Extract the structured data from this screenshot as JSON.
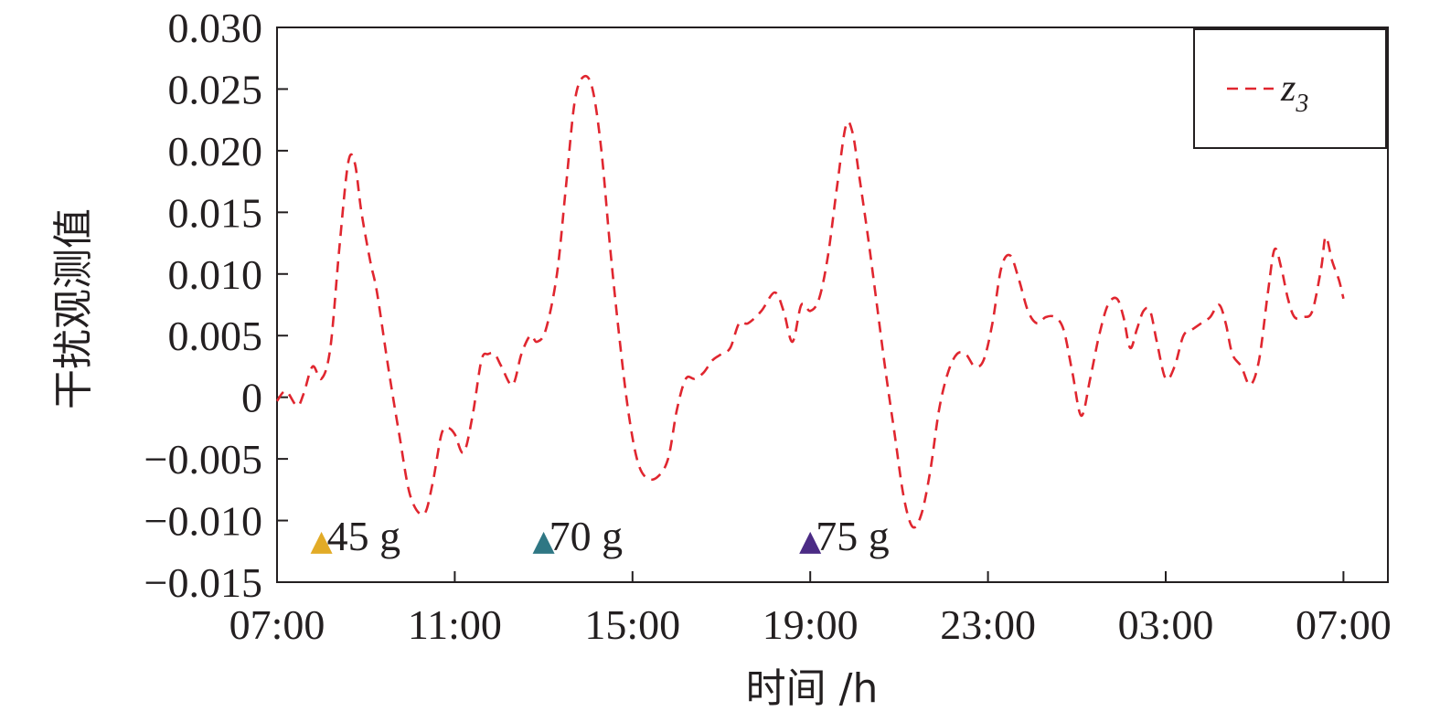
{
  "chart_data": {
    "type": "line",
    "title": "",
    "xlabel": "时间 /h",
    "ylabel": "干扰观测值",
    "x_tick_labels": [
      "07:00",
      "11:00",
      "15:00",
      "19:00",
      "23:00",
      "03:00",
      "07:00"
    ],
    "x_tick_hours": [
      0,
      4,
      8,
      12,
      16,
      20,
      24
    ],
    "xlim_hours": [
      0,
      25
    ],
    "ylim": [
      -0.015,
      0.03
    ],
    "y_ticks": [
      -0.015,
      -0.01,
      -0.005,
      0,
      0.005,
      0.01,
      0.015,
      0.02,
      0.025,
      0.03
    ],
    "y_tick_labels": [
      "−0.015",
      "−0.010",
      "−0.005",
      "0",
      "0.005",
      "0.010",
      "0.015",
      "0.020",
      "0.025",
      "0.030"
    ],
    "grid": false,
    "legend_position": "top-right",
    "series": [
      {
        "name": "z3",
        "name_base": "z",
        "name_subscript": "3",
        "color": "#e0262f",
        "style": "dashed",
        "points": [
          [
            0.0,
            -0.0003
          ],
          [
            0.2,
            0.0005
          ],
          [
            0.45,
            -0.0007
          ],
          [
            0.6,
            0.0003
          ],
          [
            0.8,
            0.0025
          ],
          [
            1.0,
            0.0015
          ],
          [
            1.2,
            0.004
          ],
          [
            1.4,
            0.012
          ],
          [
            1.6,
            0.019
          ],
          [
            1.75,
            0.019
          ],
          [
            1.9,
            0.015
          ],
          [
            2.1,
            0.011
          ],
          [
            2.25,
            0.0085
          ],
          [
            2.5,
            0.0025
          ],
          [
            2.75,
            -0.003
          ],
          [
            3.0,
            -0.008
          ],
          [
            3.3,
            -0.0095
          ],
          [
            3.5,
            -0.007
          ],
          [
            3.7,
            -0.003
          ],
          [
            3.85,
            -0.0025
          ],
          [
            4.0,
            -0.003
          ],
          [
            4.2,
            -0.0045
          ],
          [
            4.4,
            -0.0015
          ],
          [
            4.6,
            0.003
          ],
          [
            4.75,
            0.0035
          ],
          [
            4.9,
            0.0035
          ],
          [
            5.05,
            0.0025
          ],
          [
            5.3,
            0.001
          ],
          [
            5.5,
            0.0035
          ],
          [
            5.7,
            0.005
          ],
          [
            5.85,
            0.0045
          ],
          [
            6.05,
            0.0055
          ],
          [
            6.3,
            0.01
          ],
          [
            6.5,
            0.017
          ],
          [
            6.7,
            0.024
          ],
          [
            6.9,
            0.026
          ],
          [
            7.1,
            0.025
          ],
          [
            7.3,
            0.02
          ],
          [
            7.5,
            0.012
          ],
          [
            7.7,
            0.005
          ],
          [
            7.9,
            -0.001
          ],
          [
            8.1,
            -0.005
          ],
          [
            8.3,
            -0.0065
          ],
          [
            8.55,
            -0.0065
          ],
          [
            8.8,
            -0.005
          ],
          [
            9.0,
            -0.001
          ],
          [
            9.2,
            0.0015
          ],
          [
            9.4,
            0.0015
          ],
          [
            9.6,
            0.002
          ],
          [
            9.8,
            0.003
          ],
          [
            10.0,
            0.0035
          ],
          [
            10.2,
            0.004
          ],
          [
            10.4,
            0.006
          ],
          [
            10.6,
            0.006
          ],
          [
            10.9,
            0.007
          ],
          [
            11.2,
            0.0085
          ],
          [
            11.4,
            0.007
          ],
          [
            11.6,
            0.0045
          ],
          [
            11.8,
            0.0075
          ],
          [
            12.0,
            0.007
          ],
          [
            12.2,
            0.008
          ],
          [
            12.4,
            0.0115
          ],
          [
            12.6,
            0.017
          ],
          [
            12.8,
            0.022
          ],
          [
            12.95,
            0.0215
          ],
          [
            13.1,
            0.018
          ],
          [
            13.3,
            0.013
          ],
          [
            13.5,
            0.0075
          ],
          [
            13.7,
            0.002
          ],
          [
            13.9,
            -0.003
          ],
          [
            14.1,
            -0.008
          ],
          [
            14.3,
            -0.0105
          ],
          [
            14.5,
            -0.0095
          ],
          [
            14.7,
            -0.006
          ],
          [
            14.9,
            -0.001
          ],
          [
            15.1,
            0.002
          ],
          [
            15.3,
            0.0035
          ],
          [
            15.5,
            0.0035
          ],
          [
            15.7,
            0.0025
          ],
          [
            15.9,
            0.003
          ],
          [
            16.1,
            0.006
          ],
          [
            16.3,
            0.0105
          ],
          [
            16.5,
            0.0115
          ],
          [
            16.7,
            0.0095
          ],
          [
            16.9,
            0.007
          ],
          [
            17.1,
            0.006
          ],
          [
            17.3,
            0.0065
          ],
          [
            17.5,
            0.0065
          ],
          [
            17.7,
            0.0055
          ],
          [
            17.9,
            0.002
          ],
          [
            18.1,
            -0.0015
          ],
          [
            18.3,
            0.0015
          ],
          [
            18.5,
            0.005
          ],
          [
            18.7,
            0.0075
          ],
          [
            18.9,
            0.008
          ],
          [
            19.05,
            0.0065
          ],
          [
            19.2,
            0.004
          ],
          [
            19.35,
            0.0055
          ],
          [
            19.5,
            0.007
          ],
          [
            19.65,
            0.007
          ],
          [
            19.8,
            0.0045
          ],
          [
            20.0,
            0.0015
          ],
          [
            20.2,
            0.0025
          ],
          [
            20.4,
            0.005
          ],
          [
            20.6,
            0.0055
          ],
          [
            20.8,
            0.006
          ],
          [
            21.0,
            0.0065
          ],
          [
            21.2,
            0.0075
          ],
          [
            21.35,
            0.006
          ],
          [
            21.5,
            0.0035
          ],
          [
            21.7,
            0.0025
          ],
          [
            21.9,
            0.001
          ],
          [
            22.1,
            0.003
          ],
          [
            22.3,
            0.0085
          ],
          [
            22.45,
            0.012
          ],
          [
            22.6,
            0.0105
          ],
          [
            22.75,
            0.008
          ],
          [
            22.9,
            0.0065
          ],
          [
            23.1,
            0.0065
          ],
          [
            23.3,
            0.007
          ],
          [
            23.5,
            0.0105
          ],
          [
            23.6,
            0.013
          ],
          [
            23.75,
            0.011
          ],
          [
            23.9,
            0.0095
          ],
          [
            24.0,
            0.008
          ]
        ]
      }
    ],
    "annotations": [
      {
        "label": "45 g",
        "x_hours": 1.0,
        "y": -0.0118,
        "marker_color": "#e2ab27"
      },
      {
        "label": "70 g",
        "x_hours": 6.0,
        "y": -0.0118,
        "marker_color": "#2f7784"
      },
      {
        "label": "75 g",
        "x_hours": 12.0,
        "y": -0.0118,
        "marker_color": "#4b2b85"
      }
    ]
  }
}
